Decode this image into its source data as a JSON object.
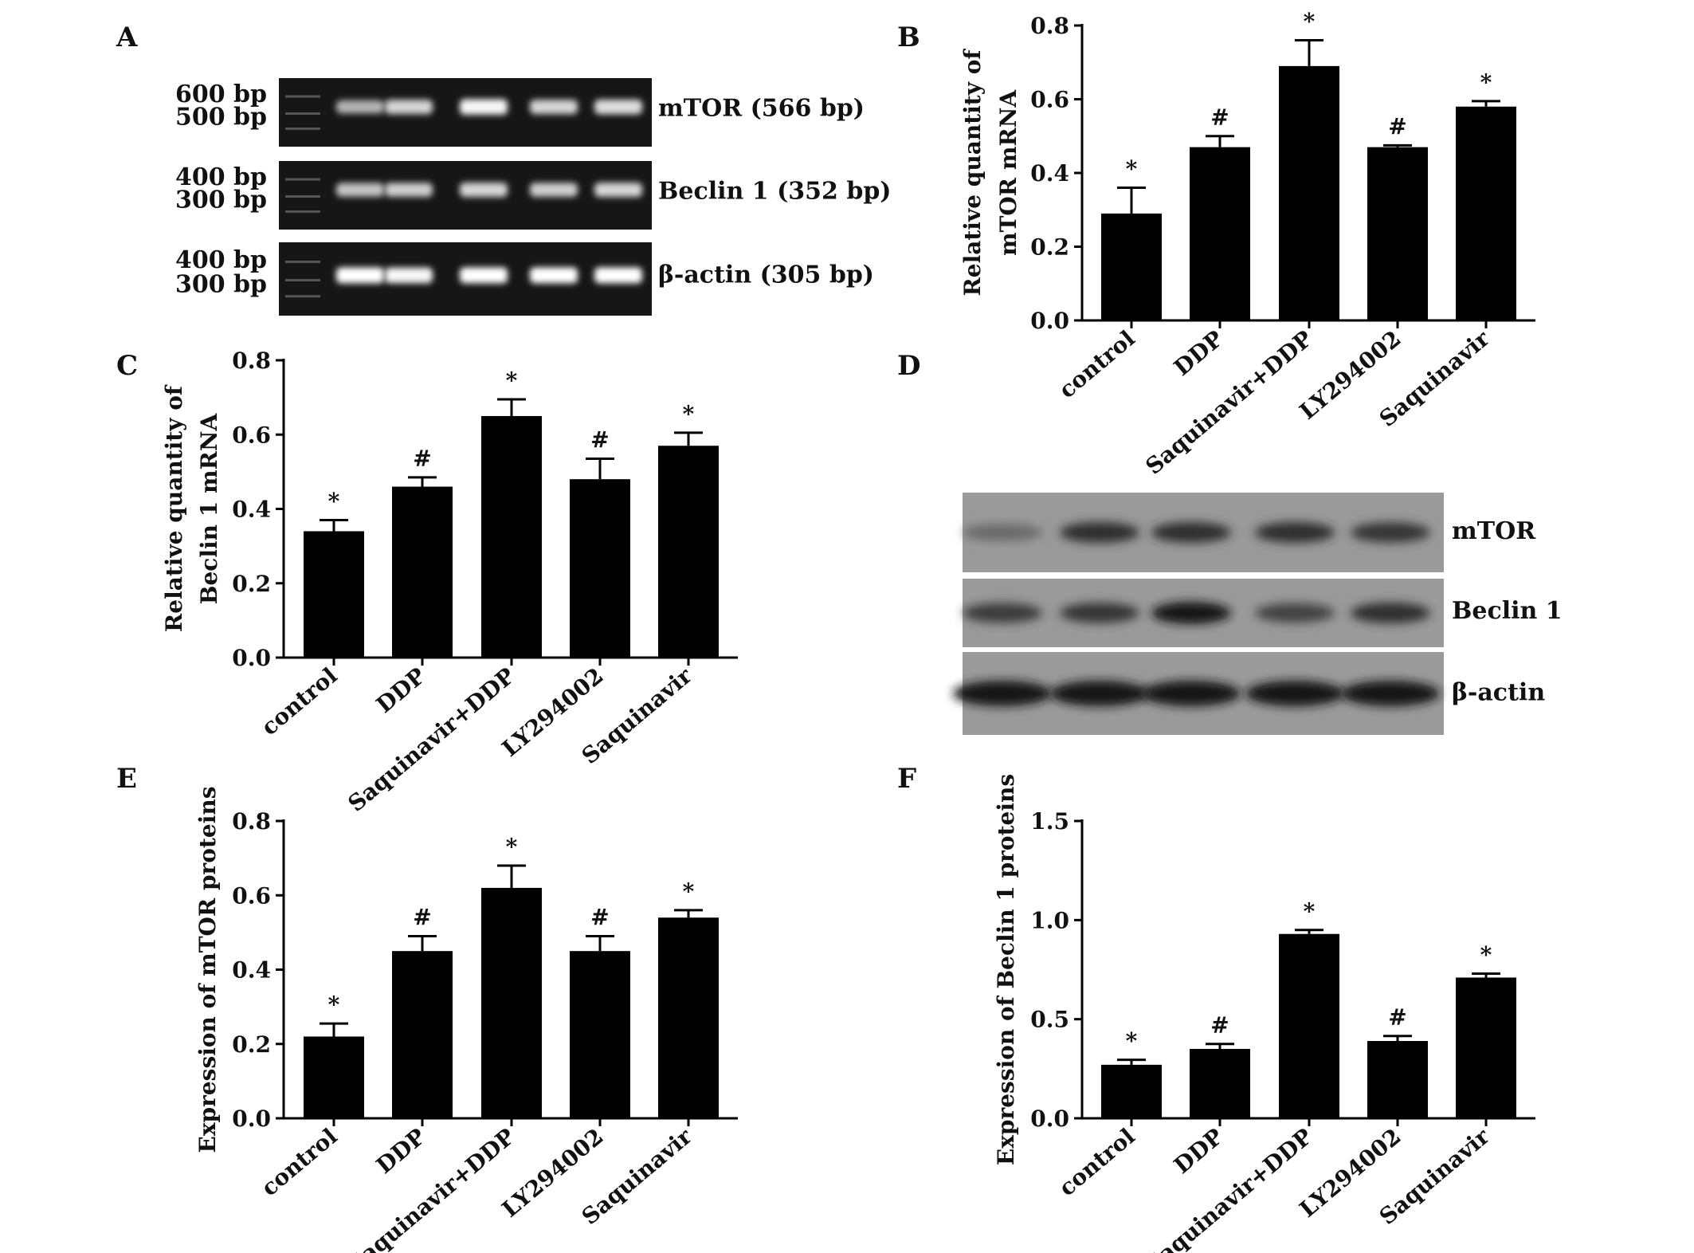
{
  "panel_labels": [
    "A",
    "B",
    "C",
    "D",
    "E",
    "F"
  ],
  "gel": {
    "rows": [
      {
        "ladder": [
          "600 bp",
          "500 bp"
        ],
        "label": "mTOR (566 bp)",
        "intensity": [
          0.55,
          0.75,
          0.95,
          0.75,
          0.8
        ]
      },
      {
        "ladder": [
          "400 bp",
          "300 bp"
        ],
        "label": "Beclin 1 (352 bp)",
        "intensity": [
          0.65,
          0.7,
          0.75,
          0.7,
          0.75
        ]
      },
      {
        "ladder": [
          "400 bp",
          "300 bp"
        ],
        "label": "β-actin (305 bp)",
        "intensity": [
          1.0,
          0.95,
          1.0,
          1.0,
          1.0
        ]
      }
    ]
  },
  "western": {
    "rows": [
      {
        "label": "mTOR",
        "intensity": [
          0.35,
          0.8,
          0.8,
          0.8,
          0.75
        ]
      },
      {
        "label": "Beclin 1",
        "intensity": [
          0.7,
          0.75,
          1.0,
          0.65,
          0.8
        ]
      },
      {
        "label": "β-actin",
        "intensity": [
          1.0,
          1.0,
          1.0,
          1.0,
          1.0
        ]
      }
    ]
  },
  "chart_data": [
    {
      "type": "bar",
      "panel": "B",
      "categories": [
        "control",
        "DDP",
        "Saquinavir+DDP",
        "LY294002",
        "Saquinavir"
      ],
      "values": [
        0.29,
        0.47,
        0.69,
        0.47,
        0.58
      ],
      "errors": [
        0.07,
        0.03,
        0.07,
        0.005,
        0.015
      ],
      "significance": [
        "*",
        "#",
        "*",
        "#",
        "*"
      ],
      "ylabel": [
        "Relative quantity of",
        "mTOR mRNA"
      ],
      "ylim": [
        0,
        0.8
      ],
      "yticks": [
        "0.0",
        "0.2",
        "0.4",
        "0.6",
        "0.8"
      ]
    },
    {
      "type": "bar",
      "panel": "C",
      "categories": [
        "control",
        "DDP",
        "Saquinavir+DDP",
        "LY294002",
        "Saquinavir"
      ],
      "values": [
        0.34,
        0.46,
        0.65,
        0.48,
        0.57
      ],
      "errors": [
        0.03,
        0.025,
        0.045,
        0.055,
        0.035
      ],
      "significance": [
        "*",
        "#",
        "*",
        "#",
        "*"
      ],
      "ylabel": [
        "Relative quantity of",
        "Beclin 1 mRNA"
      ],
      "ylim": [
        0,
        0.8
      ],
      "yticks": [
        "0.0",
        "0.2",
        "0.4",
        "0.6",
        "0.8"
      ]
    },
    {
      "type": "bar",
      "panel": "E",
      "categories": [
        "control",
        "DDP",
        "Saquinavir+DDP",
        "LY294002",
        "Saquinavir"
      ],
      "values": [
        0.22,
        0.45,
        0.62,
        0.45,
        0.54
      ],
      "errors": [
        0.035,
        0.04,
        0.06,
        0.04,
        0.02
      ],
      "significance": [
        "*",
        "#",
        "*",
        "#",
        "*"
      ],
      "ylabel": [
        "Expression of mTOR proteins"
      ],
      "ylim": [
        0,
        0.8
      ],
      "yticks": [
        "0.0",
        "0.2",
        "0.4",
        "0.6",
        "0.8"
      ]
    },
    {
      "type": "bar",
      "panel": "F",
      "categories": [
        "control",
        "DDP",
        "Saquinavir+DDP",
        "LY294002",
        "Saquinavir"
      ],
      "values": [
        0.27,
        0.35,
        0.93,
        0.39,
        0.71
      ],
      "errors": [
        0.025,
        0.025,
        0.02,
        0.025,
        0.02
      ],
      "significance": [
        "*",
        "#",
        "*",
        "#",
        "*"
      ],
      "ylabel": [
        "Expression of Beclin 1 proteins"
      ],
      "ylim": [
        0,
        1.5
      ],
      "yticks": [
        "0.0",
        "0.5",
        "1.0",
        "1.5"
      ]
    }
  ]
}
